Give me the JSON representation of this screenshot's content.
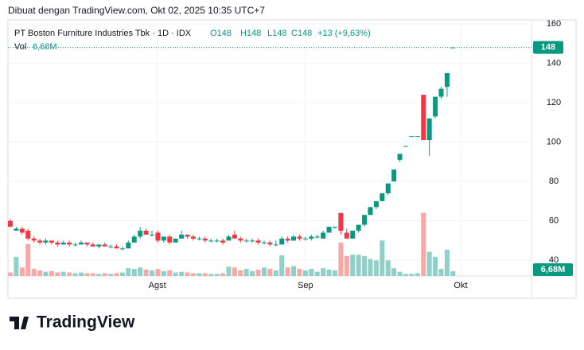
{
  "header": {
    "watermark": "Dibuat dengan TradingView.com, Okt 02, 2025 10:35 UTC+7"
  },
  "footer": {
    "brand": "TradingView"
  },
  "chart_data": {
    "type": "candlestick",
    "legend": {
      "symbol": "PT Boston Furniture Industries Tbk · 1D · IDX",
      "open": "O148",
      "high": "H148",
      "low": "L148",
      "close": "C148",
      "change": "+13 (+9,63%)",
      "volume_name": "Vol",
      "volume": "6,68M"
    },
    "open": [
      60,
      55,
      56,
      55,
      51,
      50,
      49,
      50,
      49,
      48,
      49,
      48,
      48,
      49,
      48,
      47,
      48,
      47,
      47,
      46,
      46,
      49,
      52,
      55,
      53,
      54,
      50,
      52,
      49,
      51,
      53,
      52,
      51,
      51,
      50,
      50,
      50,
      50,
      53,
      51,
      50,
      50,
      50,
      49,
      49,
      48,
      48,
      51,
      50,
      52,
      51,
      51,
      52,
      51,
      54,
      57,
      64,
      54,
      51,
      55,
      58,
      63,
      67,
      70,
      74,
      80,
      91,
      98,
      103,
      103,
      124,
      101,
      113,
      123,
      128,
      148
    ],
    "high": [
      61,
      57,
      57,
      56,
      52,
      51,
      51,
      50,
      50,
      50,
      50,
      49,
      50,
      49,
      49,
      48,
      49,
      48,
      48,
      47,
      50,
      53,
      57,
      56,
      55,
      55,
      52,
      53,
      51,
      55,
      53,
      53,
      52,
      52,
      51,
      51,
      51,
      53,
      55,
      52,
      51,
      51,
      51,
      50,
      50,
      50,
      52,
      52,
      53,
      53,
      52,
      53,
      53,
      55,
      57,
      57,
      64,
      56,
      55,
      58,
      63,
      67,
      70,
      74,
      79,
      86,
      94,
      98,
      103,
      103,
      124,
      112,
      123,
      128,
      135,
      148
    ],
    "low": [
      57,
      55,
      53,
      50,
      49,
      48,
      48,
      48,
      47,
      48,
      47,
      47,
      48,
      47,
      47,
      46,
      47,
      46,
      46,
      45,
      46,
      49,
      51,
      53,
      52,
      49,
      49,
      48,
      49,
      51,
      51,
      50,
      50,
      49,
      49,
      49,
      48,
      50,
      51,
      49,
      49,
      49,
      48,
      48,
      47,
      47,
      48,
      49,
      50,
      50,
      50,
      50,
      51,
      51,
      54,
      56,
      53,
      51,
      51,
      54,
      57,
      63,
      66,
      70,
      73,
      80,
      90,
      98,
      103,
      103,
      101,
      93,
      112,
      122,
      123,
      148
    ],
    "close": [
      57,
      56,
      54,
      51,
      50,
      49,
      50,
      49,
      48,
      49,
      48,
      48,
      49,
      48,
      47,
      48,
      47,
      47,
      46,
      46,
      49,
      52,
      55,
      53,
      53,
      50,
      52,
      49,
      51,
      53,
      52,
      51,
      51,
      50,
      50,
      50,
      49,
      52,
      51,
      50,
      50,
      50,
      49,
      49,
      48,
      48,
      51,
      50,
      52,
      51,
      51,
      52,
      52,
      54,
      57,
      57,
      55,
      51,
      55,
      58,
      63,
      67,
      70,
      74,
      79,
      86,
      94,
      98,
      103,
      103,
      101,
      112,
      123,
      127,
      135,
      148
    ],
    "volume": [
      5,
      27,
      12,
      45,
      10,
      8,
      6,
      7,
      5,
      6,
      5,
      4,
      5,
      4,
      4,
      3,
      4,
      3,
      4,
      5,
      11,
      10,
      12,
      9,
      8,
      10,
      7,
      8,
      5,
      6,
      5,
      4,
      4,
      4,
      3,
      3,
      4,
      13,
      12,
      8,
      10,
      7,
      9,
      12,
      10,
      8,
      29,
      12,
      14,
      10,
      8,
      10,
      6,
      11,
      9,
      8,
      47,
      28,
      30,
      30,
      28,
      24,
      22,
      50,
      22,
      11,
      6,
      3,
      3,
      4,
      89,
      34,
      27,
      10,
      37,
      6.68
    ],
    "up_color": "#089981",
    "down_color": "#f23645",
    "volume_up_color": "#8fd1c8",
    "volume_down_color": "#f7a8a7",
    "ylim": [
      32,
      162
    ],
    "yticks": [
      40,
      60,
      80,
      100,
      120,
      140,
      160
    ],
    "vlim": [
      0,
      360
    ],
    "xlim": [
      -0.4,
      88.3
    ],
    "xticks": [
      {
        "value": 24.9,
        "label": "Agst"
      },
      {
        "value": 50,
        "label": "Sep"
      },
      {
        "value": 76.3,
        "label": "Okt"
      }
    ],
    "grid": true
  }
}
